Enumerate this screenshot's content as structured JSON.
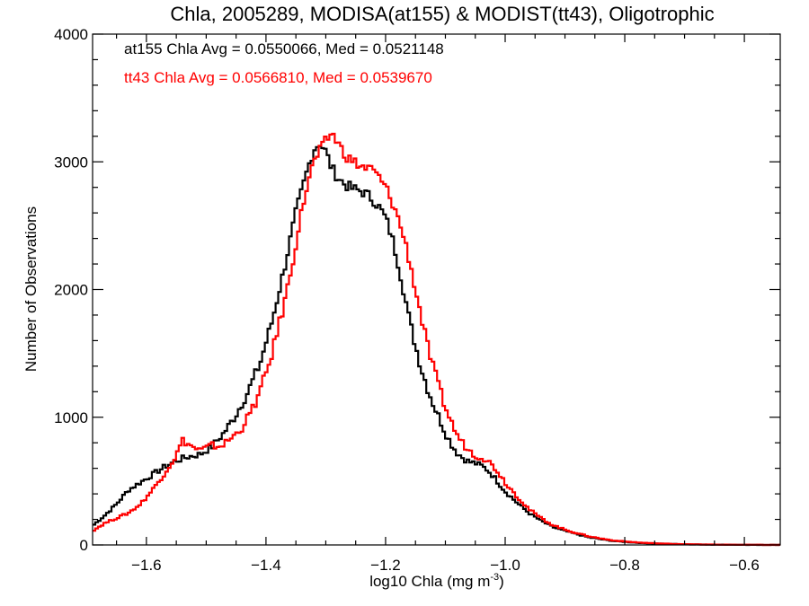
{
  "chart_data": {
    "type": "line",
    "title": "Chla, 2005289, MODISA(at155) & MODIST(tt43), Oligotrophic",
    "xlabel": "log10 Chla (mg m",
    "xlabel_sup": "-3",
    "xlabel_end": ")",
    "ylabel": "Number of Observations",
    "xlim": [
      -1.69,
      -0.54
    ],
    "ylim": [
      0,
      4000
    ],
    "xticks": [
      -1.6,
      -1.4,
      -1.2,
      -1.0,
      -0.8,
      -0.6
    ],
    "xtick_labels": [
      "−1.6",
      "−1.4",
      "−1.2",
      "−1.0",
      "−0.8",
      "−0.6"
    ],
    "yticks": [
      0,
      1000,
      2000,
      3000,
      4000
    ],
    "ytick_labels": [
      "0",
      "1000",
      "2000",
      "3000",
      "4000"
    ],
    "annotations": [
      {
        "text": "at155 Chla Avg = 0.0550066, Med = 0.0521148",
        "color": "#000000"
      },
      {
        "text": "tt43 Chla Avg = 0.0566810, Med = 0.0539670",
        "color": "#ff0000"
      }
    ],
    "series": [
      {
        "color": "#000000",
        "points": [
          [
            -1.69,
            150
          ],
          [
            -1.67,
            230
          ],
          [
            -1.65,
            320
          ],
          [
            -1.63,
            430
          ],
          [
            -1.61,
            490
          ],
          [
            -1.59,
            550
          ],
          [
            -1.57,
            610
          ],
          [
            -1.55,
            660
          ],
          [
            -1.53,
            690
          ],
          [
            -1.51,
            710
          ],
          [
            -1.49,
            770
          ],
          [
            -1.47,
            880
          ],
          [
            -1.45,
            1020
          ],
          [
            -1.43,
            1200
          ],
          [
            -1.41,
            1420
          ],
          [
            -1.39,
            1750
          ],
          [
            -1.37,
            2150
          ],
          [
            -1.35,
            2600
          ],
          [
            -1.33,
            2950
          ],
          [
            -1.32,
            3100
          ],
          [
            -1.31,
            3150
          ],
          [
            -1.3,
            3080
          ],
          [
            -1.29,
            2950
          ],
          [
            -1.28,
            2880
          ],
          [
            -1.27,
            2830
          ],
          [
            -1.26,
            2800
          ],
          [
            -1.25,
            2780
          ],
          [
            -1.24,
            2770
          ],
          [
            -1.23,
            2740
          ],
          [
            -1.22,
            2700
          ],
          [
            -1.21,
            2640
          ],
          [
            -1.2,
            2560
          ],
          [
            -1.19,
            2420
          ],
          [
            -1.18,
            2230
          ],
          [
            -1.17,
            2000
          ],
          [
            -1.16,
            1760
          ],
          [
            -1.15,
            1560
          ],
          [
            -1.14,
            1380
          ],
          [
            -1.13,
            1230
          ],
          [
            -1.12,
            1100
          ],
          [
            -1.11,
            990
          ],
          [
            -1.1,
            880
          ],
          [
            -1.09,
            790
          ],
          [
            -1.08,
            720
          ],
          [
            -1.07,
            680
          ],
          [
            -1.06,
            650
          ],
          [
            -1.05,
            640
          ],
          [
            -1.04,
            620
          ],
          [
            -1.03,
            590
          ],
          [
            -1.02,
            540
          ],
          [
            -1.01,
            480
          ],
          [
            -1.0,
            420
          ],
          [
            -0.98,
            330
          ],
          [
            -0.96,
            250
          ],
          [
            -0.94,
            190
          ],
          [
            -0.92,
            140
          ],
          [
            -0.9,
            110
          ],
          [
            -0.88,
            85
          ],
          [
            -0.86,
            60
          ],
          [
            -0.84,
            45
          ],
          [
            -0.82,
            32
          ],
          [
            -0.8,
            24
          ],
          [
            -0.78,
            18
          ],
          [
            -0.76,
            13
          ],
          [
            -0.74,
            10
          ],
          [
            -0.72,
            7
          ],
          [
            -0.7,
            5
          ],
          [
            -0.68,
            4
          ],
          [
            -0.66,
            3
          ],
          [
            -0.64,
            2
          ],
          [
            -0.62,
            2
          ],
          [
            -0.6,
            1
          ],
          [
            -0.58,
            1
          ],
          [
            -0.56,
            0
          ],
          [
            -0.54,
            0
          ]
        ]
      },
      {
        "color": "#ff0000",
        "points": [
          [
            -1.69,
            110
          ],
          [
            -1.67,
            170
          ],
          [
            -1.65,
            210
          ],
          [
            -1.63,
            250
          ],
          [
            -1.61,
            320
          ],
          [
            -1.59,
            430
          ],
          [
            -1.57,
            560
          ],
          [
            -1.55,
            700
          ],
          [
            -1.54,
            820
          ],
          [
            -1.53,
            790
          ],
          [
            -1.52,
            760
          ],
          [
            -1.51,
            740
          ],
          [
            -1.5,
            760
          ],
          [
            -1.49,
            780
          ],
          [
            -1.48,
            770
          ],
          [
            -1.47,
            790
          ],
          [
            -1.46,
            830
          ],
          [
            -1.45,
            870
          ],
          [
            -1.44,
            920
          ],
          [
            -1.43,
            1000
          ],
          [
            -1.42,
            1090
          ],
          [
            -1.41,
            1200
          ],
          [
            -1.4,
            1340
          ],
          [
            -1.39,
            1500
          ],
          [
            -1.38,
            1690
          ],
          [
            -1.37,
            1880
          ],
          [
            -1.36,
            2100
          ],
          [
            -1.35,
            2360
          ],
          [
            -1.34,
            2620
          ],
          [
            -1.33,
            2840
          ],
          [
            -1.32,
            3000
          ],
          [
            -1.31,
            3080
          ],
          [
            -1.3,
            3160
          ],
          [
            -1.29,
            3230
          ],
          [
            -1.28,
            3150
          ],
          [
            -1.27,
            3070
          ],
          [
            -1.26,
            3020
          ],
          [
            -1.25,
            2990
          ],
          [
            -1.24,
            2960
          ],
          [
            -1.23,
            2950
          ],
          [
            -1.22,
            2930
          ],
          [
            -1.21,
            2870
          ],
          [
            -1.2,
            2800
          ],
          [
            -1.19,
            2700
          ],
          [
            -1.18,
            2570
          ],
          [
            -1.17,
            2420
          ],
          [
            -1.16,
            2230
          ],
          [
            -1.15,
            2000
          ],
          [
            -1.14,
            1780
          ],
          [
            -1.13,
            1560
          ],
          [
            -1.12,
            1380
          ],
          [
            -1.11,
            1220
          ],
          [
            -1.1,
            1080
          ],
          [
            -1.09,
            960
          ],
          [
            -1.08,
            860
          ],
          [
            -1.07,
            790
          ],
          [
            -1.06,
            740
          ],
          [
            -1.05,
            700
          ],
          [
            -1.04,
            690
          ],
          [
            -1.03,
            660
          ],
          [
            -1.02,
            620
          ],
          [
            -1.01,
            560
          ],
          [
            -1.0,
            490
          ],
          [
            -0.98,
            380
          ],
          [
            -0.96,
            280
          ],
          [
            -0.94,
            210
          ],
          [
            -0.92,
            155
          ],
          [
            -0.9,
            120
          ],
          [
            -0.88,
            92
          ],
          [
            -0.86,
            68
          ],
          [
            -0.84,
            50
          ],
          [
            -0.82,
            36
          ],
          [
            -0.8,
            27
          ],
          [
            -0.78,
            20
          ],
          [
            -0.76,
            15
          ],
          [
            -0.74,
            11
          ],
          [
            -0.72,
            8
          ],
          [
            -0.7,
            6
          ],
          [
            -0.68,
            4
          ],
          [
            -0.66,
            3
          ],
          [
            -0.64,
            2
          ],
          [
            -0.62,
            2
          ],
          [
            -0.6,
            1
          ],
          [
            -0.58,
            1
          ],
          [
            -0.56,
            0
          ],
          [
            -0.54,
            0
          ]
        ]
      }
    ]
  }
}
